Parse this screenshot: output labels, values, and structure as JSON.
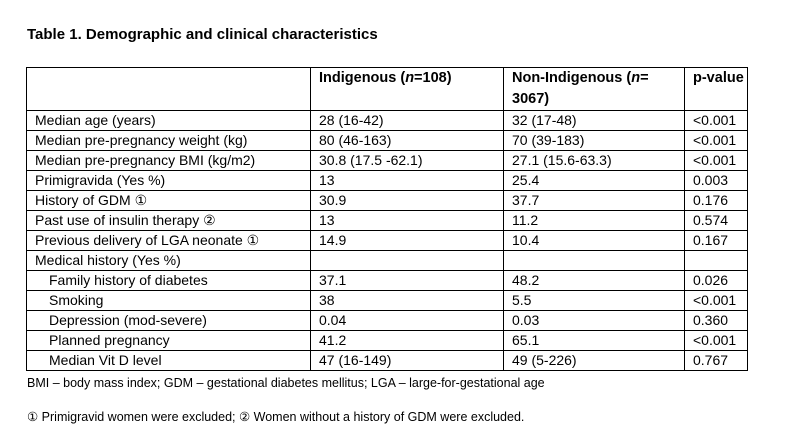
{
  "title": "Table 1. Demographic and clinical characteristics",
  "table": {
    "headers": {
      "col0": "",
      "col1_pre": "Indigenous (",
      "col1_n": "n",
      "col1_post": "=108)",
      "col2_pre": "Non-Indigenous (",
      "col2_n": "n",
      "col2_post": "= 3067)",
      "col3": "p-value"
    },
    "rows": [
      {
        "label": "Median age (years)",
        "indigenous": "28 (16-42)",
        "non_indigenous": "32 (17-48)",
        "p": "<0.001",
        "sub": false
      },
      {
        "label": "Median pre-pregnancy weight (kg)",
        "indigenous": "80 (46-163)",
        "non_indigenous": "70 (39-183)",
        "p": "<0.001",
        "sub": false
      },
      {
        "label": "Median pre-pregnancy BMI (kg/m2)",
        "indigenous": "30.8 (17.5 -62.1)",
        "non_indigenous": "27.1 (15.6-63.3)",
        "p": "<0.001",
        "sub": false
      },
      {
        "label": "Primigravida (Yes %)",
        "indigenous": "13",
        "non_indigenous": "25.4",
        "p": "0.003",
        "sub": false
      },
      {
        "label": "History of GDM ①",
        "indigenous": "30.9",
        "non_indigenous": "37.7",
        "p": "0.176",
        "sub": false
      },
      {
        "label": "Past use of insulin therapy ②",
        "indigenous": "13",
        "non_indigenous": "11.2",
        "p": "0.574",
        "sub": false
      },
      {
        "label": "Previous delivery of LGA neonate ①",
        "indigenous": "14.9",
        "non_indigenous": "10.4",
        "p": "0.167",
        "sub": false
      },
      {
        "label": "Medical history (Yes %)",
        "indigenous": "",
        "non_indigenous": "",
        "p": "",
        "sub": false
      },
      {
        "label": "Family history of diabetes",
        "indigenous": "37.1",
        "non_indigenous": "48.2",
        "p": "0.026",
        "sub": true
      },
      {
        "label": "Smoking",
        "indigenous": "38",
        "non_indigenous": "5.5",
        "p": "<0.001",
        "sub": true
      },
      {
        "label": "Depression (mod-severe)",
        "indigenous": "0.04",
        "non_indigenous": "0.03",
        "p": "0.360",
        "sub": true
      },
      {
        "label": "Planned pregnancy",
        "indigenous": "41.2",
        "non_indigenous": "65.1",
        "p": "<0.001",
        "sub": true
      },
      {
        "label": "Median Vit D level",
        "indigenous": "47 (16-149)",
        "non_indigenous": "49 (5-226)",
        "p": "0.767",
        "sub": true
      }
    ]
  },
  "footnotes": {
    "abbreviations": "BMI – body mass index; GDM – gestational diabetes mellitus; LGA – large-for-gestational age",
    "exclusions": "① Primigravid women were excluded; ② Women without a history of GDM were excluded."
  }
}
